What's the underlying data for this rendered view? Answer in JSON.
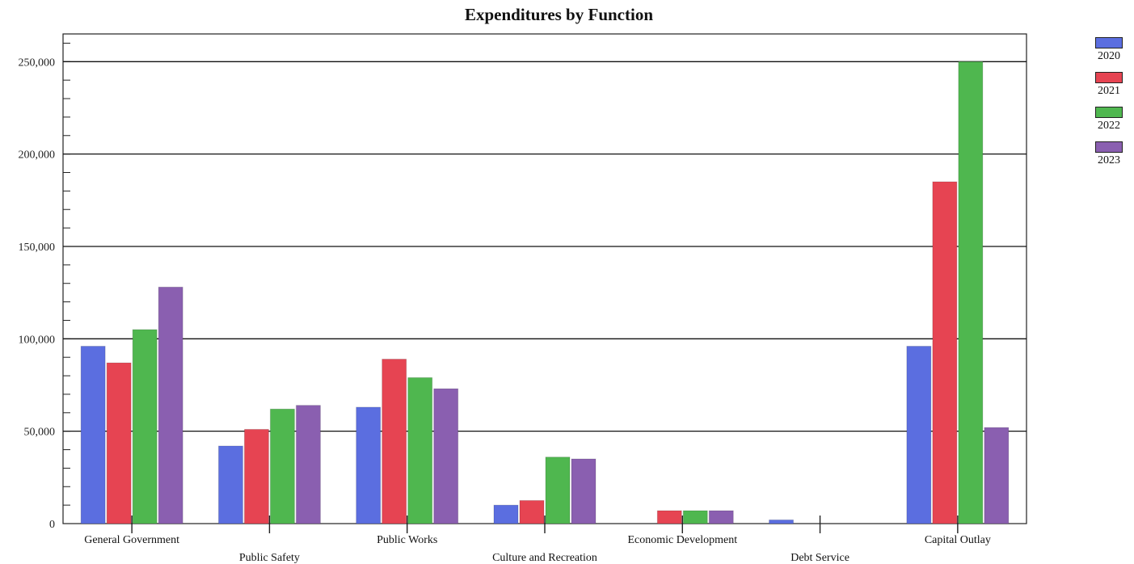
{
  "chart_data": {
    "type": "bar",
    "title": "Expenditures by Function",
    "xlabel": "",
    "ylabel": "",
    "ylim": [
      0,
      265000
    ],
    "yticks": [
      0,
      50000,
      100000,
      150000,
      200000,
      250000
    ],
    "ytick_labels": [
      "0",
      "50,000",
      "100,000",
      "150,000",
      "200,000",
      "250,000"
    ],
    "grid": true,
    "legend_position": "right",
    "categories": [
      "General Government",
      "Public Safety",
      "Public Works",
      "Culture and Recreation",
      "Economic Development",
      "Debt Service",
      "Capital Outlay"
    ],
    "series": [
      {
        "name": "2020",
        "color": "#5b6ee0",
        "values": [
          96000,
          42000,
          63000,
          10000,
          0,
          2000,
          96000
        ]
      },
      {
        "name": "2021",
        "color": "#e64452",
        "values": [
          87000,
          51000,
          89000,
          12500,
          7000,
          0,
          185000
        ]
      },
      {
        "name": "2022",
        "color": "#4fb74f",
        "values": [
          105000,
          62000,
          79000,
          36000,
          7000,
          0,
          250000
        ]
      },
      {
        "name": "2023",
        "color": "#8a5fb0",
        "values": [
          128000,
          64000,
          73000,
          35000,
          7000,
          0,
          52000
        ]
      }
    ]
  }
}
